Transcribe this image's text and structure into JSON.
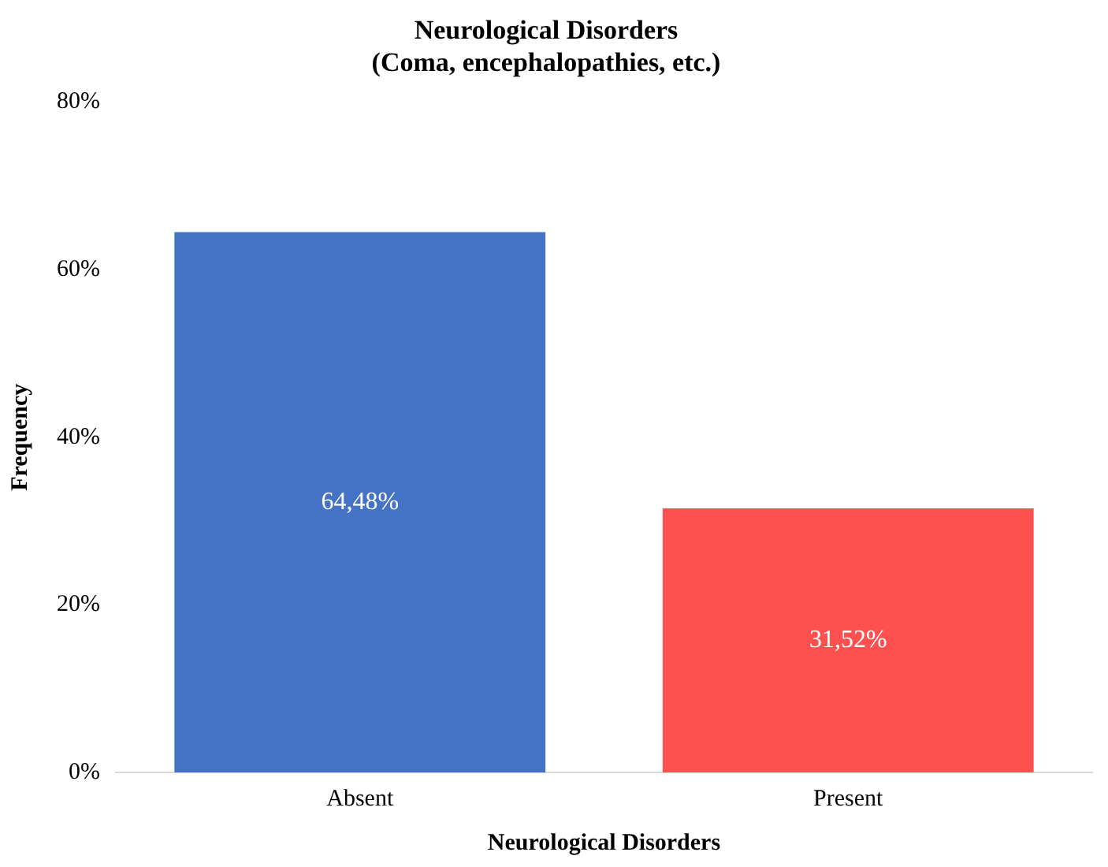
{
  "chart_data": {
    "type": "bar",
    "title": "Neurological Disorders\n(Coma, encephalopathies, etc.)",
    "xlabel": "Neurological Disorders",
    "ylabel": "Frequency",
    "categories": [
      "Absent",
      "Present"
    ],
    "values": [
      64.48,
      31.52
    ],
    "colors": [
      "#4472c4",
      "#ff5050"
    ],
    "value_labels": [
      "64,48%",
      "31,52%"
    ],
    "ylim": [
      0,
      80
    ],
    "yticks": [
      {
        "value": 0,
        "label": "0%"
      },
      {
        "value": 20,
        "label": "20%"
      },
      {
        "value": 40,
        "label": "40%"
      },
      {
        "value": 60,
        "label": "60%"
      },
      {
        "value": 80,
        "label": "80%"
      }
    ],
    "grid": false,
    "legend": false
  }
}
